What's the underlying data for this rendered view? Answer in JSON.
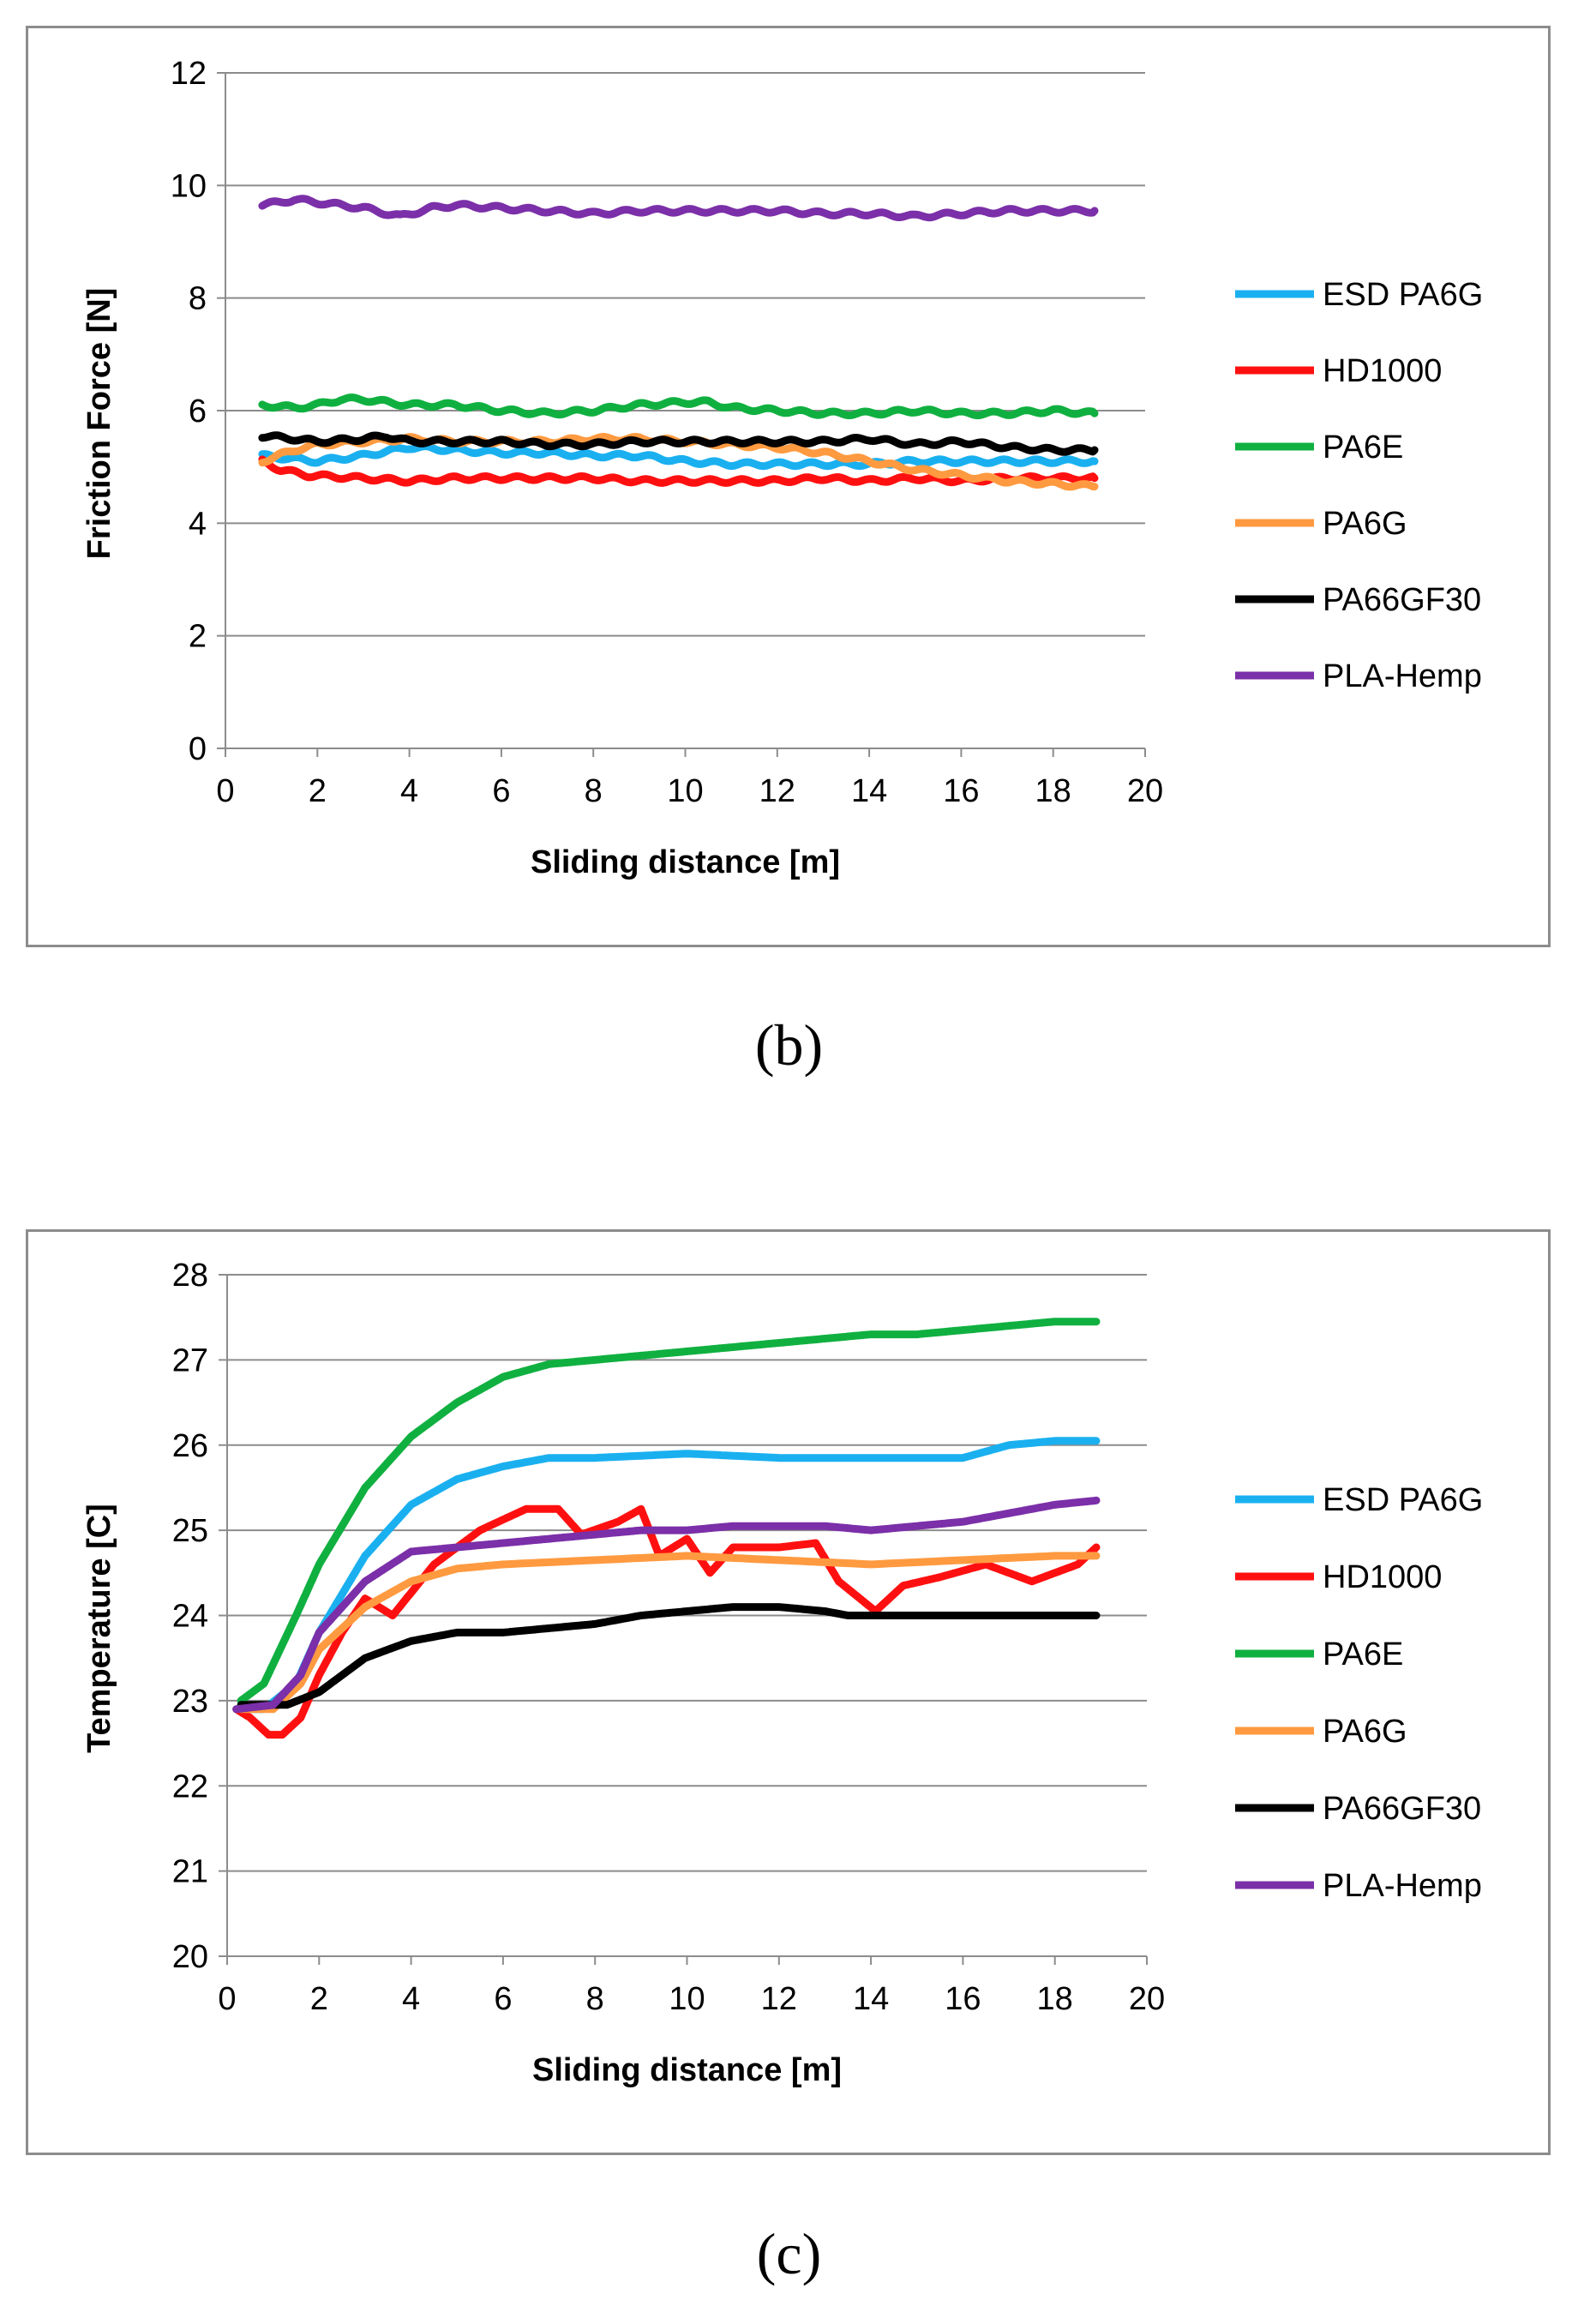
{
  "chart_data": [
    {
      "type": "line",
      "panel": "b",
      "xlabel": "Sliding distance [m]",
      "ylabel": "Friction Force [N]",
      "xlim": [
        0,
        20
      ],
      "ylim": [
        0,
        12
      ],
      "xticks": [
        0,
        2,
        4,
        6,
        8,
        10,
        12,
        14,
        16,
        18,
        20
      ],
      "yticks": [
        0,
        2,
        4,
        6,
        8,
        10,
        12
      ],
      "grid": "horizontal",
      "legend_position": "right",
      "series": [
        {
          "name": "ESD PA6G",
          "color": "#1ab0f0",
          "x": [
            0.8,
            2,
            3,
            4,
            5,
            6,
            7,
            8,
            9,
            10,
            11,
            12,
            13,
            14,
            15,
            16,
            17,
            18,
            18.9
          ],
          "y": [
            5.2,
            5.1,
            5.2,
            5.35,
            5.3,
            5.25,
            5.25,
            5.2,
            5.2,
            5.1,
            5.05,
            5.05,
            5.05,
            5.05,
            5.1,
            5.1,
            5.1,
            5.1,
            5.1
          ]
        },
        {
          "name": "HD1000",
          "color": "#ff1010",
          "x": [
            0.8,
            1.2,
            1.8,
            3,
            4,
            5,
            6,
            7,
            8,
            9,
            10,
            11,
            12,
            13,
            14,
            15,
            16,
            17,
            18,
            18.9
          ],
          "y": [
            5.1,
            4.95,
            4.85,
            4.8,
            4.75,
            4.8,
            4.8,
            4.8,
            4.8,
            4.75,
            4.75,
            4.75,
            4.75,
            4.8,
            4.75,
            4.8,
            4.75,
            4.8,
            4.8,
            4.8
          ]
        },
        {
          "name": "PA6E",
          "color": "#10b040",
          "x": [
            0.8,
            1.5,
            2,
            2.5,
            3,
            3.5,
            4,
            5,
            6,
            7,
            8,
            9,
            10,
            10.5,
            11,
            12,
            13,
            14,
            15,
            16,
            17,
            18,
            18.9
          ],
          "y": [
            6.1,
            6.05,
            6.1,
            6.2,
            6.2,
            6.15,
            6.1,
            6.1,
            6.0,
            5.95,
            6.0,
            6.1,
            6.15,
            6.15,
            6.05,
            6.0,
            5.95,
            5.95,
            6.0,
            5.95,
            5.95,
            6.0,
            5.95
          ]
        },
        {
          "name": "PA6G",
          "color": "#ff9a40",
          "x": [
            0.8,
            1.5,
            2,
            3,
            4,
            5,
            6,
            7,
            8,
            9,
            10,
            11,
            12,
            13,
            14,
            15,
            16,
            17,
            18,
            18.9
          ],
          "y": [
            5.1,
            5.3,
            5.4,
            5.45,
            5.5,
            5.45,
            5.45,
            5.45,
            5.5,
            5.5,
            5.45,
            5.4,
            5.35,
            5.25,
            5.1,
            4.95,
            4.85,
            4.75,
            4.7,
            4.65
          ]
        },
        {
          "name": "PA66GF30",
          "color": "#000000",
          "x": [
            0.8,
            1.5,
            2,
            3,
            3.5,
            4,
            5,
            6,
            7,
            8,
            9,
            10,
            11,
            12,
            13,
            14,
            15,
            16,
            17,
            18,
            18.9
          ],
          "y": [
            5.55,
            5.5,
            5.45,
            5.5,
            5.55,
            5.45,
            5.45,
            5.45,
            5.4,
            5.4,
            5.45,
            5.45,
            5.45,
            5.45,
            5.45,
            5.5,
            5.4,
            5.45,
            5.35,
            5.3,
            5.3
          ]
        },
        {
          "name": "PLA-Hemp",
          "color": "#7b2fa8",
          "x": [
            0.8,
            1.5,
            2,
            3,
            3.8,
            4.5,
            5,
            6,
            7,
            8,
            9,
            10,
            11,
            12,
            13,
            14,
            15,
            16,
            17,
            18,
            18.9
          ],
          "y": [
            9.65,
            9.75,
            9.7,
            9.6,
            9.45,
            9.6,
            9.65,
            9.6,
            9.55,
            9.5,
            9.55,
            9.55,
            9.55,
            9.55,
            9.5,
            9.5,
            9.45,
            9.5,
            9.55,
            9.55,
            9.55
          ]
        }
      ]
    },
    {
      "type": "line",
      "panel": "c",
      "xlabel": "Sliding distance [m]",
      "ylabel": "Temperature [C]",
      "xlim": [
        0,
        20
      ],
      "ylim": [
        20,
        28
      ],
      "xticks": [
        0,
        2,
        4,
        6,
        8,
        10,
        12,
        14,
        16,
        18,
        20
      ],
      "yticks": [
        20,
        21,
        22,
        23,
        24,
        25,
        26,
        27,
        28
      ],
      "grid": "horizontal",
      "legend_position": "right",
      "series": [
        {
          "name": "ESD PA6G",
          "color": "#1ab0f0",
          "x": [
            0.2,
            0.8,
            1.5,
            2,
            3,
            4,
            5,
            6,
            7,
            8,
            10,
            12,
            14,
            16,
            17,
            18,
            18.9
          ],
          "y": [
            22.9,
            22.9,
            23.2,
            23.8,
            24.7,
            25.3,
            25.6,
            25.75,
            25.85,
            25.85,
            25.9,
            25.85,
            25.85,
            25.85,
            26.0,
            26.05,
            26.05
          ]
        },
        {
          "name": "HD1000",
          "color": "#ff1010",
          "x": [
            0.2,
            0.5,
            0.9,
            1.2,
            1.6,
            2,
            2.5,
            3,
            3.6,
            4.5,
            5.5,
            6.5,
            7.2,
            7.7,
            8.5,
            9.0,
            9.4,
            10,
            10.5,
            11,
            12,
            12.8,
            13.3,
            14.1,
            14.7,
            15.5,
            16.5,
            17.5,
            18.5,
            18.9
          ],
          "y": [
            22.9,
            22.8,
            22.6,
            22.6,
            22.8,
            23.3,
            23.8,
            24.2,
            24.0,
            24.6,
            25.0,
            25.25,
            25.25,
            24.95,
            25.1,
            25.25,
            24.7,
            24.9,
            24.5,
            24.8,
            24.8,
            24.85,
            24.4,
            24.05,
            24.35,
            24.45,
            24.6,
            24.4,
            24.6,
            24.8
          ]
        },
        {
          "name": "PA6E",
          "color": "#10b040",
          "x": [
            0.3,
            0.8,
            1.5,
            2,
            3,
            4,
            5,
            6,
            7,
            8,
            9,
            10,
            11,
            12,
            13,
            14,
            15,
            16,
            17,
            18,
            18.9
          ],
          "y": [
            23.0,
            23.2,
            24.0,
            24.6,
            25.5,
            26.1,
            26.5,
            26.8,
            26.95,
            27.0,
            27.05,
            27.1,
            27.15,
            27.2,
            27.25,
            27.3,
            27.3,
            27.35,
            27.4,
            27.45,
            27.45
          ]
        },
        {
          "name": "PA6G",
          "color": "#ff9a40",
          "x": [
            0.3,
            1,
            1.6,
            2,
            3,
            4,
            5,
            6,
            8,
            10,
            12,
            14,
            16,
            18,
            18.9
          ],
          "y": [
            22.9,
            22.9,
            23.2,
            23.6,
            24.1,
            24.4,
            24.55,
            24.6,
            24.65,
            24.7,
            24.65,
            24.6,
            24.65,
            24.7,
            24.7
          ]
        },
        {
          "name": "PA66GF30",
          "color": "#000000",
          "x": [
            0.3,
            1.3,
            2,
            2.5,
            3,
            4,
            5,
            6,
            7,
            8,
            9,
            10,
            11,
            12,
            13,
            13.5,
            14,
            16,
            18,
            18.9
          ],
          "y": [
            22.95,
            22.95,
            23.1,
            23.3,
            23.5,
            23.7,
            23.8,
            23.8,
            23.85,
            23.9,
            24.0,
            24.05,
            24.1,
            24.1,
            24.05,
            24.0,
            24.0,
            24.0,
            24.0,
            24.0
          ]
        },
        {
          "name": "PLA-Hemp",
          "color": "#7b2fa8",
          "x": [
            0.2,
            1,
            1.6,
            2,
            3,
            4,
            5,
            6,
            7,
            8,
            9,
            10,
            11,
            12,
            13,
            14,
            15,
            16,
            17,
            18,
            18.9
          ],
          "y": [
            22.9,
            22.95,
            23.3,
            23.8,
            24.4,
            24.75,
            24.8,
            24.85,
            24.9,
            24.95,
            25.0,
            25.0,
            25.05,
            25.05,
            25.05,
            25.0,
            25.05,
            25.1,
            25.2,
            25.3,
            25.35
          ]
        }
      ]
    }
  ],
  "captions": {
    "b": "(b)",
    "c": "(c)"
  }
}
